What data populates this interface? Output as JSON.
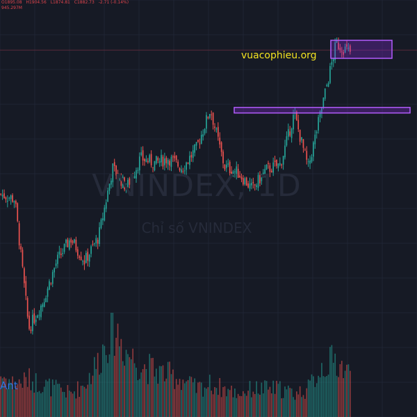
{
  "header": {
    "open": "O1895.08",
    "high": "H1904.56",
    "low": "L1874.81",
    "close": "C1882.73",
    "change": "-2.71 (-0.14%)",
    "volume": "945.297M"
  },
  "watermark": {
    "title": "VNINDEX, 1D",
    "subtitle": "Chỉ số VNINDEX"
  },
  "brand_text": "vuacophieu.org",
  "indicator_label": "Ant",
  "colors": {
    "background": "#161a25",
    "up": "#26a69a",
    "down": "#ef5350",
    "zone_fill": "#8a2be2",
    "zone_stroke": "#b45cff",
    "brand": "#f5e320",
    "indicator": "#2f74e0"
  },
  "chart_data": {
    "type": "candlestick",
    "symbol": "VNINDEX",
    "interval": "1D",
    "close_path_keypoints": [
      1450,
      1435,
      1040,
      1120,
      1245,
      1315,
      1245,
      1320,
      1530,
      1470,
      1560,
      1545,
      1560,
      1530,
      1590,
      1710,
      1535,
      1515,
      1465,
      1525,
      1540,
      1695,
      1530,
      1720,
      1910,
      1883
    ],
    "volume_profile_keypoints": [
      0.45,
      0.35,
      0.4,
      0.35,
      0.3,
      0.25,
      0.35,
      0.6,
      1.0,
      0.7,
      0.55,
      0.5,
      0.45,
      0.4,
      0.3,
      0.35,
      0.3,
      0.25,
      0.3,
      0.3,
      0.3,
      0.25,
      0.3,
      0.55,
      0.6,
      0.45
    ],
    "zones": [
      {
        "label": "breakout-resistance",
        "y_from": 1700,
        "y_to": 1715
      },
      {
        "label": "recent-consolidation",
        "y_from": 1865,
        "y_to": 1920
      }
    ],
    "reference_line": 1890
  }
}
